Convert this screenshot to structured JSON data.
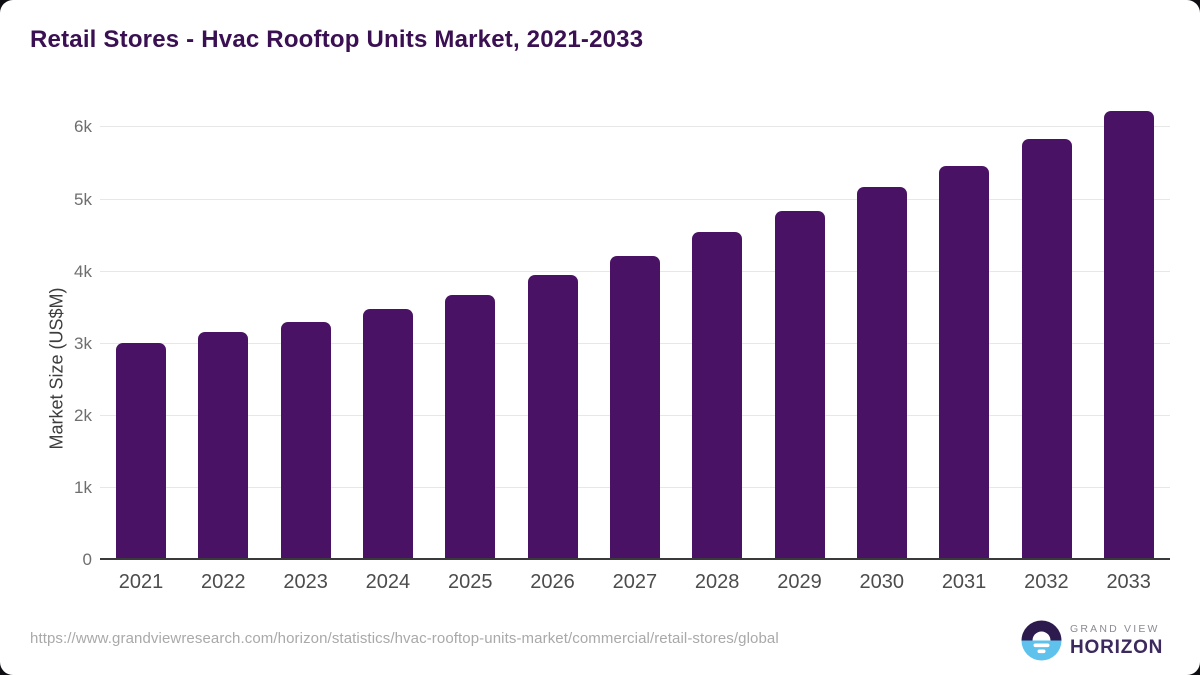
{
  "title": "Retail Stores - Hvac Rooftop Units Market, 2021-2033",
  "chart_data": {
    "type": "bar",
    "title": "Retail Stores - Hvac Rooftop Units Market, 2021-2033",
    "categories": [
      "2021",
      "2022",
      "2023",
      "2024",
      "2025",
      "2026",
      "2027",
      "2028",
      "2029",
      "2030",
      "2031",
      "2032",
      "2033"
    ],
    "values": [
      3000,
      3155,
      3290,
      3465,
      3655,
      3935,
      4205,
      4530,
      4820,
      5155,
      5455,
      5820,
      6220
    ],
    "xlabel": "",
    "ylabel": "Market Size (US$M)",
    "ylim": [
      0,
      6370
    ],
    "yticks": [
      {
        "value": 0,
        "label": "0"
      },
      {
        "value": 1000,
        "label": "1k"
      },
      {
        "value": 2000,
        "label": "2k"
      },
      {
        "value": 3000,
        "label": "3k"
      },
      {
        "value": 4000,
        "label": "4k"
      },
      {
        "value": 5000,
        "label": "5k"
      },
      {
        "value": 6000,
        "label": "6k"
      }
    ],
    "grid": true,
    "legend": false,
    "bar_color": "#4a1264"
  },
  "colors": {
    "bar": "#4a1264",
    "title": "#3a1053",
    "gridline": "#e7e7e7",
    "axis_line": "#3a3a3a",
    "x_tick": "#4c4c4c",
    "y_tick": "#6e6e6e",
    "footer_text": "#a9a9a9",
    "logo_dark": "#2d1b4e",
    "logo_blue": "#5ec2ec",
    "card_background": "#ffffff",
    "page_background": "#0e0e13"
  },
  "footer": {
    "source_url": "https://www.grandviewresearch.com/horizon/statistics/hvac-rooftop-units-market/commercial/retail-stores/global",
    "logo": {
      "line1": "GRAND VIEW",
      "line2": "HORIZON"
    }
  }
}
